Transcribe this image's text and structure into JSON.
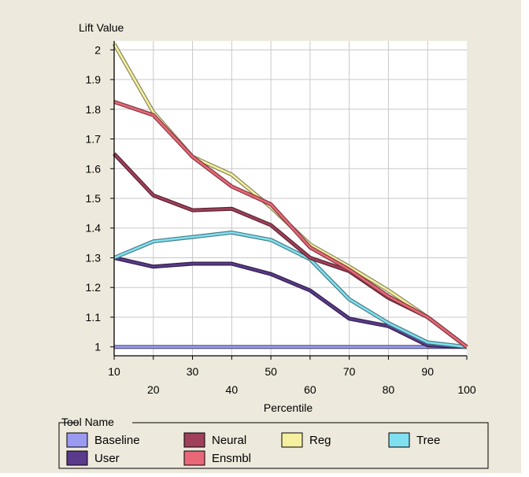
{
  "chart_data": {
    "type": "line",
    "ylabel": "Lift Value",
    "xlabel": "Percentile",
    "x": [
      10,
      20,
      30,
      40,
      50,
      60,
      70,
      80,
      90,
      100
    ],
    "xticks": [
      "10",
      "20",
      "30",
      "40",
      "50",
      "60",
      "70",
      "80",
      "90",
      "100"
    ],
    "yticks": [
      "1",
      "1.1",
      "1.2",
      "1.3",
      "1.4",
      "1.5",
      "1.6",
      "1.7",
      "1.8",
      "1.9",
      "2"
    ],
    "ylim": [
      0.97,
      2.03
    ],
    "xlim": [
      10,
      100
    ],
    "grid": true,
    "legend_title": "Tool Name",
    "legend_position": "bottom",
    "series": [
      {
        "name": "Baseline",
        "color": "#9a9af0",
        "values": [
          1.0,
          1.0,
          1.0,
          1.0,
          1.0,
          1.0,
          1.0,
          1.0,
          1.0,
          1.0
        ]
      },
      {
        "name": "Neural",
        "color": "#a0405a",
        "values": [
          1.65,
          1.51,
          1.46,
          1.465,
          1.41,
          1.3,
          1.255,
          1.165,
          1.1,
          1.0
        ]
      },
      {
        "name": "Reg",
        "color": "#f4f0a0",
        "values": [
          2.02,
          1.79,
          1.64,
          1.58,
          1.47,
          1.345,
          1.27,
          1.19,
          1.1,
          1.0
        ]
      },
      {
        "name": "Tree",
        "color": "#80e0f0",
        "values": [
          1.3,
          1.355,
          1.37,
          1.385,
          1.36,
          1.295,
          1.16,
          1.08,
          1.015,
          1.0
        ]
      },
      {
        "name": "User",
        "color": "#5a3a8a",
        "values": [
          1.3,
          1.27,
          1.28,
          1.28,
          1.245,
          1.19,
          1.095,
          1.07,
          1.005,
          1.0
        ]
      },
      {
        "name": "Ensmbl",
        "color": "#e86878",
        "values": [
          1.825,
          1.78,
          1.64,
          1.54,
          1.48,
          1.335,
          1.26,
          1.17,
          1.1,
          1.0
        ]
      }
    ]
  }
}
